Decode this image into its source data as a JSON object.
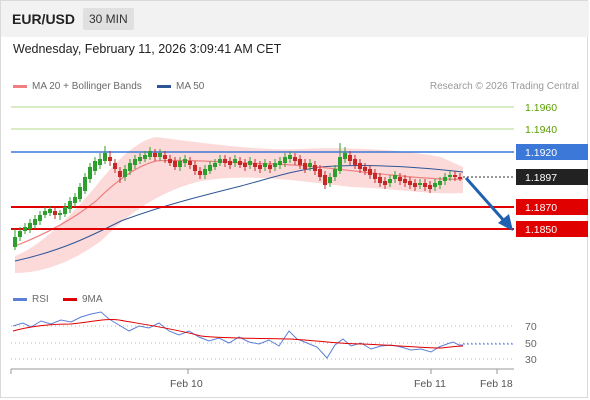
{
  "header": {
    "symbol": "EUR/USD",
    "timeframe": "30 MIN"
  },
  "datetime": "Wednesday, February 11, 2026 3:09:41 AM CET",
  "legend_main": [
    {
      "label": "MA 20 + Bollinger Bands",
      "color": "#f08080"
    },
    {
      "label": "MA 50",
      "color": "#2f5597"
    }
  ],
  "research": "Research © 2026 Trading Central",
  "price_levels": [
    {
      "label": "1.1960",
      "kind": "target",
      "color": "#5aa000"
    },
    {
      "label": "1.1940",
      "kind": "target",
      "color": "#5aa000"
    },
    {
      "label": "1.1920",
      "kind": "pivot",
      "color": "#3c78d8"
    },
    {
      "label": "1.1897",
      "kind": "last",
      "color": "#222222"
    },
    {
      "label": "1.1870",
      "kind": "support",
      "color": "#e00000"
    },
    {
      "label": "1.1850",
      "kind": "support",
      "color": "#e00000"
    }
  ],
  "legend_rsi": [
    {
      "label": "RSI",
      "color": "#5b7fd6"
    },
    {
      "label": "9MA",
      "color": "#e00000"
    }
  ],
  "rsi_ticks": [
    "70",
    "50",
    "30"
  ],
  "x_labels": [
    "Feb 10",
    "Feb 11",
    "Feb 18"
  ],
  "colors": {
    "up": "#2e9e2e",
    "down": "#c62828",
    "band": "#fbd4d4",
    "ma20": "#f08080",
    "ma50": "#2f5597",
    "forecast_arrow": "#2060b0"
  }
}
